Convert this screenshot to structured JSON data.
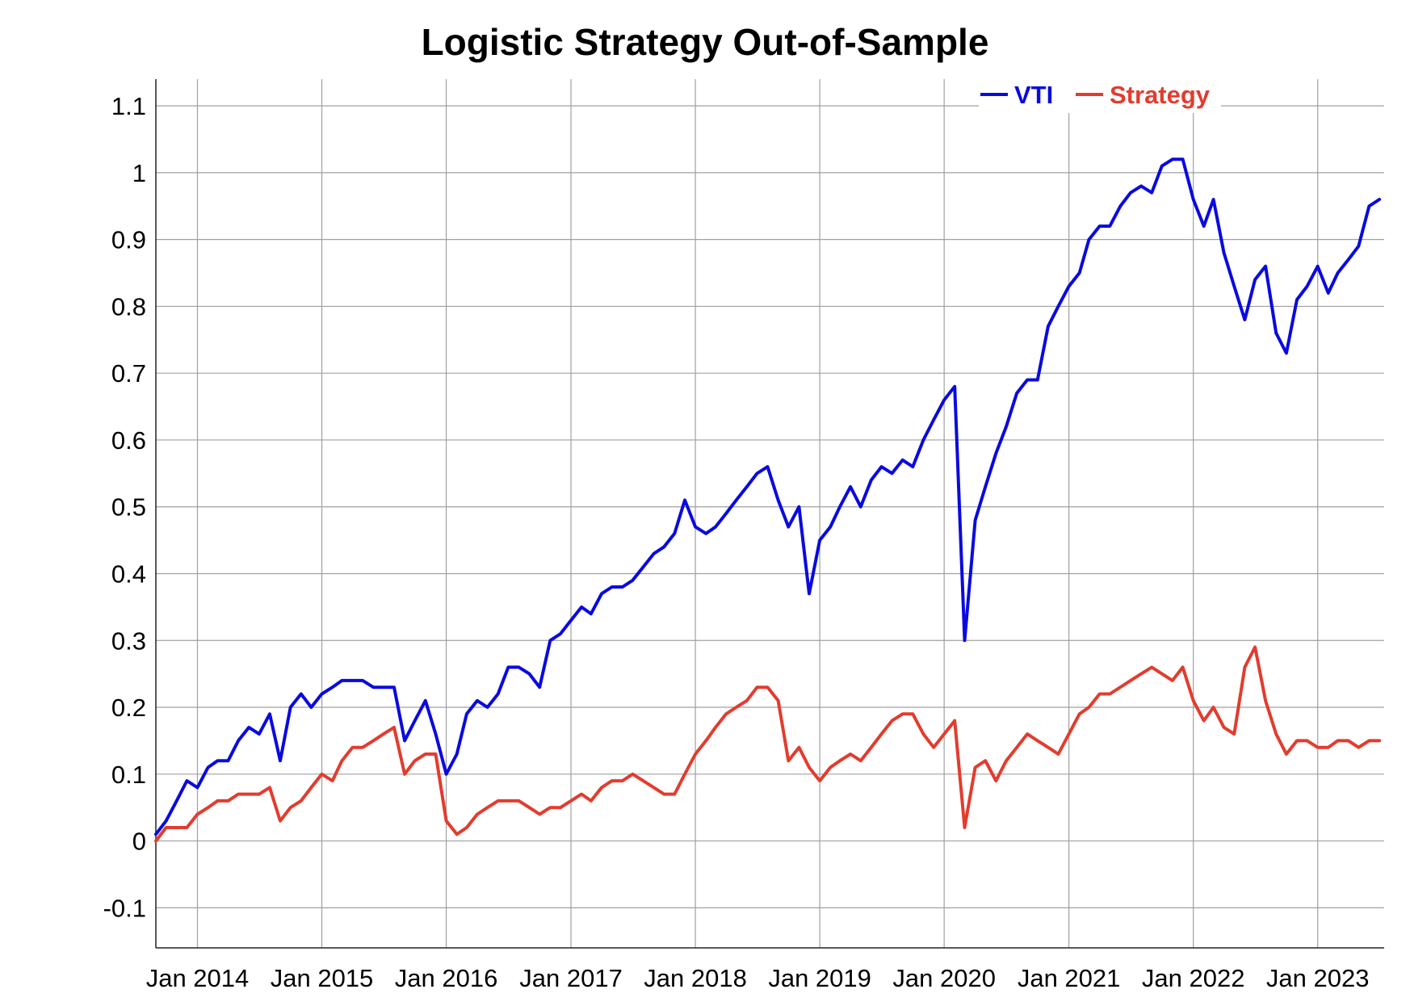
{
  "chart_data": {
    "type": "line",
    "title": "Logistic Strategy Out-of-Sample",
    "xlabel": "",
    "ylabel": "",
    "x_type": "date",
    "xlim": [
      "2013-09-01",
      "2023-07-15"
    ],
    "ylim": [
      -0.16,
      1.14
    ],
    "yticks": [
      -0.1,
      0,
      0.1,
      0.2,
      0.3,
      0.4,
      0.5,
      0.6,
      0.7,
      0.8,
      0.9,
      1,
      1.1
    ],
    "ytick_labels": [
      "-0.1",
      "0",
      "0.1",
      "0.2",
      "0.3",
      "0.4",
      "0.5",
      "0.6",
      "0.7",
      "0.8",
      "0.9",
      "1",
      "1.1"
    ],
    "xticks": [
      "2014-01-01",
      "2015-01-01",
      "2016-01-01",
      "2017-01-01",
      "2018-01-01",
      "2019-01-01",
      "2020-01-01",
      "2021-01-01",
      "2022-01-01",
      "2023-01-01"
    ],
    "xtick_labels": [
      "Jan 2014",
      "Jan 2015",
      "Jan 2016",
      "Jan 2017",
      "Jan 2018",
      "Jan 2019",
      "Jan 2020",
      "Jan 2021",
      "Jan 2022",
      "Jan 2023"
    ],
    "grid": true,
    "legend_position": "top-right",
    "x": [
      "2013-09-01",
      "2013-10-01",
      "2013-11-01",
      "2013-12-01",
      "2014-01-01",
      "2014-02-01",
      "2014-03-01",
      "2014-04-01",
      "2014-05-01",
      "2014-06-01",
      "2014-07-01",
      "2014-08-01",
      "2014-09-01",
      "2014-10-01",
      "2014-11-01",
      "2014-12-01",
      "2015-01-01",
      "2015-02-01",
      "2015-03-01",
      "2015-04-01",
      "2015-05-01",
      "2015-06-01",
      "2015-07-01",
      "2015-08-01",
      "2015-09-01",
      "2015-10-01",
      "2015-11-01",
      "2015-12-01",
      "2016-01-01",
      "2016-02-01",
      "2016-03-01",
      "2016-04-01",
      "2016-05-01",
      "2016-06-01",
      "2016-07-01",
      "2016-08-01",
      "2016-09-01",
      "2016-10-01",
      "2016-11-01",
      "2016-12-01",
      "2017-01-01",
      "2017-02-01",
      "2017-03-01",
      "2017-04-01",
      "2017-05-01",
      "2017-06-01",
      "2017-07-01",
      "2017-08-01",
      "2017-09-01",
      "2017-10-01",
      "2017-11-01",
      "2017-12-01",
      "2018-01-01",
      "2018-02-01",
      "2018-03-01",
      "2018-04-01",
      "2018-05-01",
      "2018-06-01",
      "2018-07-01",
      "2018-08-01",
      "2018-09-01",
      "2018-10-01",
      "2018-11-01",
      "2018-12-01",
      "2019-01-01",
      "2019-02-01",
      "2019-03-01",
      "2019-04-01",
      "2019-05-01",
      "2019-06-01",
      "2019-07-01",
      "2019-08-01",
      "2019-09-01",
      "2019-10-01",
      "2019-11-01",
      "2019-12-01",
      "2020-01-01",
      "2020-02-01",
      "2020-03-01",
      "2020-04-01",
      "2020-05-01",
      "2020-06-01",
      "2020-07-01",
      "2020-08-01",
      "2020-09-01",
      "2020-10-01",
      "2020-11-01",
      "2020-12-01",
      "2021-01-01",
      "2021-02-01",
      "2021-03-01",
      "2021-04-01",
      "2021-05-01",
      "2021-06-01",
      "2021-07-01",
      "2021-08-01",
      "2021-09-01",
      "2021-10-01",
      "2021-11-01",
      "2021-12-01",
      "2022-01-01",
      "2022-02-01",
      "2022-03-01",
      "2022-04-01",
      "2022-05-01",
      "2022-06-01",
      "2022-07-01",
      "2022-08-01",
      "2022-09-01",
      "2022-10-01",
      "2022-11-01",
      "2022-12-01",
      "2023-01-01",
      "2023-02-01",
      "2023-03-01",
      "2023-04-01",
      "2023-05-01",
      "2023-06-01",
      "2023-07-01"
    ],
    "series": [
      {
        "name": "VTI",
        "color": "#0a0adf",
        "values": [
          0.01,
          0.03,
          0.06,
          0.09,
          0.08,
          0.11,
          0.12,
          0.12,
          0.15,
          0.17,
          0.16,
          0.19,
          0.12,
          0.2,
          0.22,
          0.2,
          0.22,
          0.23,
          0.24,
          0.24,
          0.24,
          0.23,
          0.23,
          0.23,
          0.15,
          0.18,
          0.21,
          0.16,
          0.1,
          0.13,
          0.19,
          0.21,
          0.2,
          0.22,
          0.26,
          0.26,
          0.25,
          0.23,
          0.3,
          0.31,
          0.33,
          0.35,
          0.34,
          0.37,
          0.38,
          0.38,
          0.39,
          0.41,
          0.43,
          0.44,
          0.46,
          0.51,
          0.47,
          0.46,
          0.47,
          0.49,
          0.51,
          0.53,
          0.55,
          0.56,
          0.51,
          0.47,
          0.5,
          0.37,
          0.45,
          0.47,
          0.5,
          0.53,
          0.5,
          0.54,
          0.56,
          0.55,
          0.57,
          0.56,
          0.6,
          0.63,
          0.66,
          0.68,
          0.3,
          0.48,
          0.53,
          0.58,
          0.62,
          0.67,
          0.69,
          0.69,
          0.77,
          0.8,
          0.83,
          0.85,
          0.9,
          0.92,
          0.92,
          0.95,
          0.97,
          0.98,
          0.97,
          1.01,
          1.02,
          1.02,
          0.96,
          0.92,
          0.96,
          0.88,
          0.83,
          0.78,
          0.84,
          0.86,
          0.76,
          0.73,
          0.81,
          0.83,
          0.86,
          0.82,
          0.85,
          0.87,
          0.89,
          0.95,
          0.96
        ]
      },
      {
        "name": "Strategy",
        "color": "#e23c2e",
        "values": [
          0.0,
          0.02,
          0.02,
          0.02,
          0.04,
          0.05,
          0.06,
          0.06,
          0.07,
          0.07,
          0.07,
          0.08,
          0.03,
          0.05,
          0.06,
          0.08,
          0.1,
          0.09,
          0.12,
          0.14,
          0.14,
          0.15,
          0.16,
          0.17,
          0.1,
          0.12,
          0.13,
          0.13,
          0.03,
          0.01,
          0.02,
          0.04,
          0.05,
          0.06,
          0.06,
          0.06,
          0.05,
          0.04,
          0.05,
          0.05,
          0.06,
          0.07,
          0.06,
          0.08,
          0.09,
          0.09,
          0.1,
          0.09,
          0.08,
          0.07,
          0.07,
          0.1,
          0.13,
          0.15,
          0.17,
          0.19,
          0.2,
          0.21,
          0.23,
          0.23,
          0.21,
          0.12,
          0.14,
          0.11,
          0.09,
          0.11,
          0.12,
          0.13,
          0.12,
          0.14,
          0.16,
          0.18,
          0.19,
          0.19,
          0.16,
          0.14,
          0.16,
          0.18,
          0.02,
          0.11,
          0.12,
          0.09,
          0.12,
          0.14,
          0.16,
          0.15,
          0.14,
          0.13,
          0.16,
          0.19,
          0.2,
          0.22,
          0.22,
          0.23,
          0.24,
          0.25,
          0.26,
          0.25,
          0.24,
          0.26,
          0.21,
          0.18,
          0.2,
          0.17,
          0.16,
          0.26,
          0.29,
          0.21,
          0.16,
          0.13,
          0.15,
          0.15,
          0.14,
          0.14,
          0.15,
          0.15,
          0.14,
          0.15,
          0.15
        ]
      }
    ]
  }
}
